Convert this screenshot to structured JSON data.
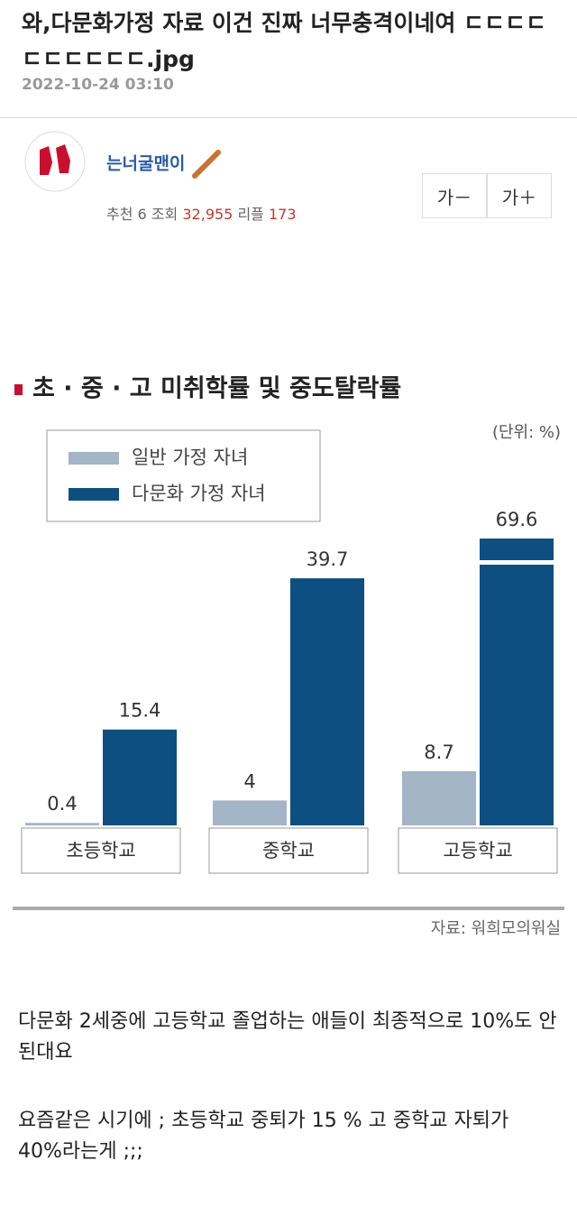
{
  "header": {
    "title": "와,다문화가정 자료 이건 진짜 너무충격이네여 ㄷㄷㄷㄷㄷㄷㄷㄷㄷㄷ.jpg",
    "date": "2022-10-24 03:10"
  },
  "author": {
    "name": "는너굴맨이",
    "stats": [
      {
        "label": "추천",
        "value": "6"
      },
      {
        "label": "조회",
        "value": "32,955"
      },
      {
        "label": "리플",
        "value": "173"
      }
    ]
  },
  "font_buttons": [
    "가－",
    "가＋"
  ],
  "chart_data": {
    "type": "bar",
    "title": "초 · 중 · 고 미취학률 및 중도탈락률",
    "unit": "(단위: %)",
    "categories": [
      "초등학교",
      "중학교",
      "고등학교"
    ],
    "series": [
      {
        "name": "일반 가정 자녀",
        "color": "#a3b5c6",
        "values": [
          0.4,
          4,
          8.7
        ]
      },
      {
        "name": "다문화 가정 자녀",
        "color": "#0d4f80",
        "values": [
          15.4,
          39.7,
          69.6
        ]
      }
    ],
    "source": "자료: 워희모의워실"
  },
  "body": [
    "다문화 2세중에 고등학교 졸업하는 애들이 최종적으로 10%도 안된대요",
    "요즘같은 시기에 ; 초등학교 중퇴가 15 % 고 중학교 자퇴가 40%라는게 ;;;"
  ]
}
